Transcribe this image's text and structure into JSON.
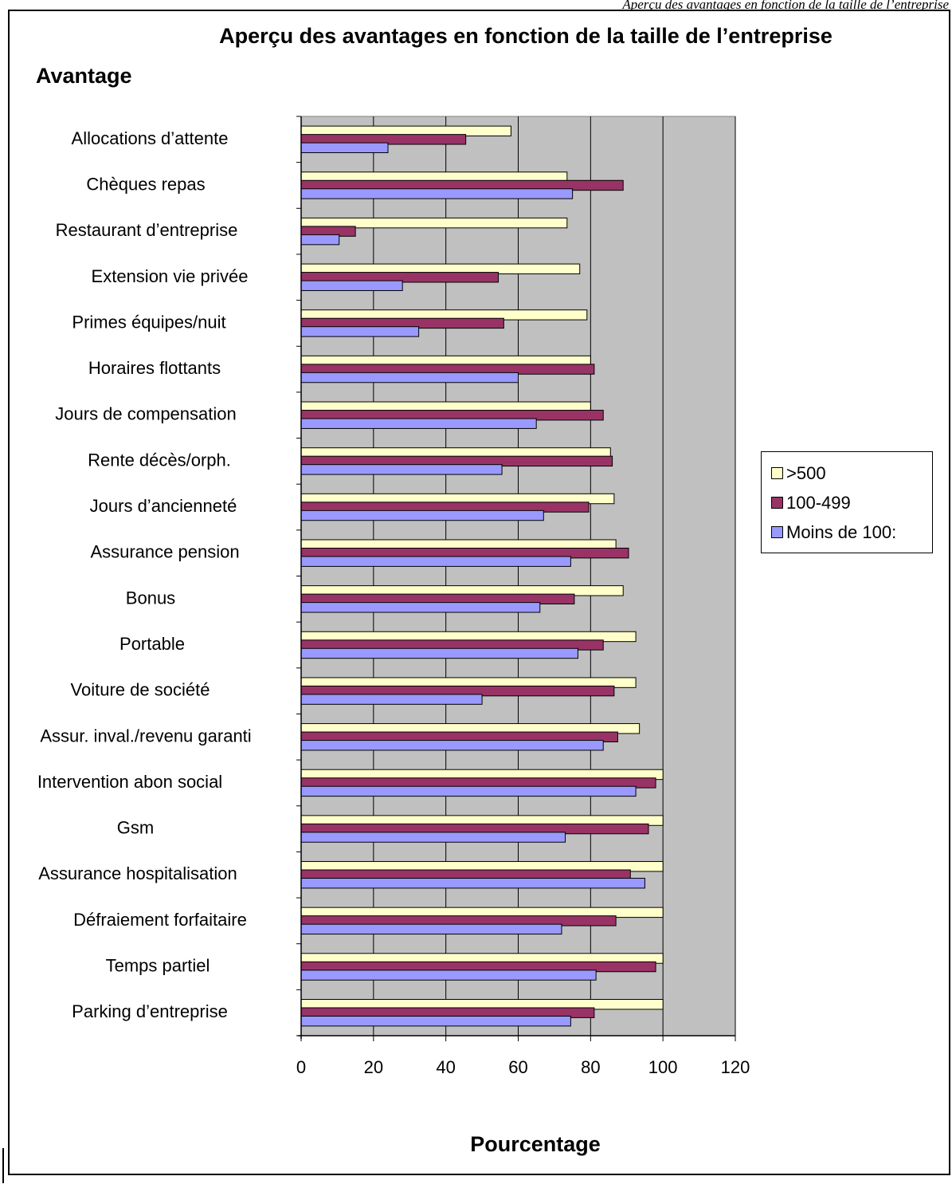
{
  "page_header": "Aperçu des avantages en fonction de la taille de l’entreprise",
  "chart_data": {
    "type": "bar",
    "orientation": "horizontal",
    "title": "Aperçu des avantages en fonction de la taille de l’entreprise",
    "ylabel": "Avantage",
    "xlabel": "Pourcentage",
    "xlim": [
      0,
      120
    ],
    "xticks": [
      0,
      20,
      40,
      60,
      80,
      100,
      120
    ],
    "grid": true,
    "plot_background": "#c0c0c0",
    "legend_position": "right",
    "categories": [
      "Allocations d’attente",
      "Chèques repas",
      "Restaurant d’entreprise",
      "Extension vie privée",
      "Primes équipes/nuit",
      "Horaires flottants",
      "Jours de compensation",
      "Rente décès/orph.",
      "Jours d’ancienneté",
      "Assurance pension",
      "Bonus",
      "Portable",
      "Voiture de société",
      "Assur. inval./revenu garanti",
      "Intervention abon social",
      "Gsm",
      "Assurance hospitalisation",
      "Défraiement forfaitaire",
      "Temps partiel",
      "Parking d’entreprise"
    ],
    "series": [
      {
        "name": ">500",
        "color": "#ffffcc",
        "values": [
          58,
          73.5,
          73.5,
          77,
          79,
          80,
          80,
          85.5,
          86.5,
          87,
          89,
          92.5,
          92.5,
          93.5,
          100,
          100,
          100,
          100,
          100,
          100
        ]
      },
      {
        "name": "100-499",
        "color": "#993366",
        "values": [
          45.5,
          89,
          15,
          54.5,
          56,
          81,
          83.5,
          86,
          79.5,
          90.5,
          75.5,
          83.5,
          86.5,
          87.5,
          98,
          96,
          91,
          87,
          98,
          81
        ]
      },
      {
        "name": "Moins de 100:",
        "color": "#9999ff",
        "values": [
          24,
          75,
          10.5,
          28,
          32.5,
          60,
          65,
          55.5,
          67,
          74.5,
          66,
          76.5,
          50,
          83.5,
          92.5,
          73,
          95,
          72,
          81.5,
          74.5
        ]
      }
    ]
  }
}
